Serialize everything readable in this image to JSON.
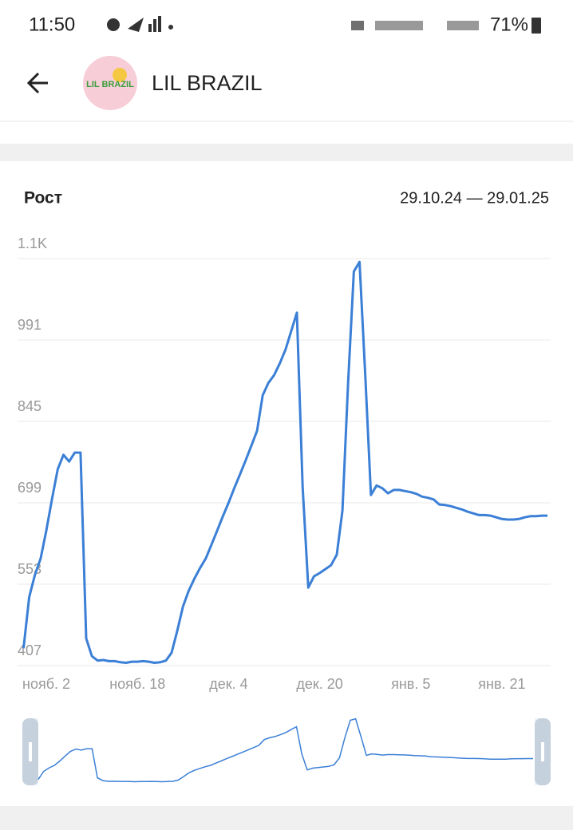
{
  "status_bar": {
    "time": "11:50",
    "battery": "71%"
  },
  "header": {
    "avatar_text": "LIL BRAZIL",
    "title": "LIL BRAZIL"
  },
  "card": {
    "title": "Рост",
    "date_range": "29.10.24 — 29.01.25"
  },
  "chart_data": {
    "type": "line",
    "color": "#3b7fd6",
    "grid": true,
    "categories": [
      null,
      null,
      null,
      null,
      "нояб. 2",
      null,
      null,
      null,
      null,
      null,
      null,
      null,
      null,
      null,
      null,
      null,
      null,
      null,
      null,
      null,
      "нояб. 18",
      null,
      null,
      null,
      null,
      null,
      null,
      null,
      null,
      null,
      null,
      null,
      null,
      null,
      null,
      null,
      "дек. 4",
      null,
      null,
      null,
      null,
      null,
      null,
      null,
      null,
      null,
      null,
      null,
      null,
      null,
      null,
      null,
      "дек. 20",
      null,
      null,
      null,
      null,
      null,
      null,
      null,
      null,
      null,
      null,
      null,
      null,
      null,
      null,
      null,
      "янв. 5",
      null,
      null,
      null,
      null,
      null,
      null,
      null,
      null,
      null,
      null,
      null,
      null,
      null,
      null,
      null,
      "янв. 21",
      null,
      null,
      null,
      null,
      null,
      null,
      null,
      null
    ],
    "values": [
      438,
      530,
      570,
      599,
      649,
      706,
      759,
      785,
      773,
      789,
      789,
      456,
      424,
      416,
      417,
      415,
      415,
      413,
      412,
      414,
      414,
      415,
      414,
      412,
      413,
      416,
      430,
      470,
      513,
      541,
      563,
      582,
      599,
      624,
      649,
      675,
      699,
      725,
      750,
      775,
      801,
      828,
      892,
      914,
      928,
      949,
      974,
      1007,
      1040,
      728,
      547,
      567,
      573,
      580,
      587,
      606,
      685,
      914,
      1114,
      1131,
      928,
      713,
      730,
      725,
      716,
      722,
      722,
      720,
      718,
      715,
      710,
      708,
      705,
      696,
      695,
      693,
      690,
      687,
      683,
      680,
      677,
      677,
      676,
      673,
      670,
      669,
      669,
      670,
      673,
      675,
      675,
      676,
      676
    ],
    "ylim": [
      407,
      1137
    ],
    "yticks": [
      407,
      553,
      699,
      845,
      991,
      {
        "value": 1137,
        "label": "1.1K"
      }
    ]
  }
}
